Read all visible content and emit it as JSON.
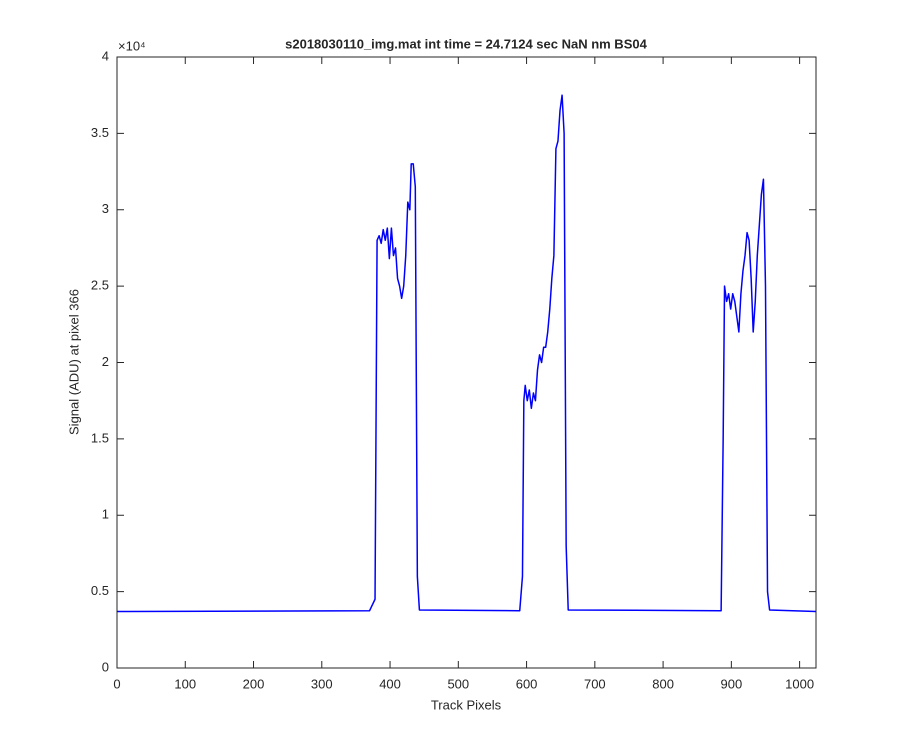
{
  "chart_data": {
    "type": "line",
    "title": "s2018030110_img.mat int time = 24.7124 sec  NaN nm BS04",
    "xlabel": "Track Pixels",
    "ylabel": "Signal (ADU) at pixel 366",
    "y_multiplier": "×10⁴",
    "xlim": [
      0,
      1024
    ],
    "ylim": [
      0,
      40000
    ],
    "xticks": [
      0,
      100,
      200,
      300,
      400,
      500,
      600,
      700,
      800,
      900,
      1000
    ],
    "yticks": [
      0,
      {
        "value": 5000,
        "label": "0.5"
      },
      {
        "value": 10000,
        "label": "1"
      },
      {
        "value": 15000,
        "label": "1.5"
      },
      {
        "value": 20000,
        "label": "2"
      },
      {
        "value": 25000,
        "label": "2.5"
      },
      {
        "value": 30000,
        "label": "3"
      },
      {
        "value": 35000,
        "label": "3.5"
      },
      {
        "value": 40000,
        "label": "4"
      }
    ],
    "grid": false,
    "x": [
      0,
      370,
      378,
      381,
      384,
      387,
      390,
      393,
      396,
      399,
      402,
      405,
      408,
      411,
      414,
      417,
      420,
      423,
      426,
      429,
      431,
      434,
      437,
      440,
      443,
      590,
      594,
      596,
      598,
      601,
      604,
      607,
      610,
      613,
      616,
      619,
      622,
      625,
      628,
      631,
      634,
      637,
      640,
      643,
      646,
      649,
      652,
      655,
      658,
      661,
      885,
      888,
      890,
      893,
      896,
      899,
      902,
      905,
      908,
      911,
      914,
      917,
      920,
      923,
      926,
      929,
      932,
      935,
      938,
      941,
      944,
      947,
      950,
      953,
      956,
      1024
    ],
    "series": [
      {
        "name": "signal",
        "color": "#0000ff",
        "values": [
          3700,
          3750,
          4500,
          28000,
          28300,
          27800,
          28700,
          28000,
          28800,
          26800,
          28800,
          27000,
          27500,
          25500,
          25000,
          24200,
          25000,
          27000,
          30500,
          30000,
          33000,
          33000,
          31500,
          6000,
          3800,
          3750,
          6000,
          17500,
          18500,
          17500,
          18200,
          17000,
          18000,
          17500,
          19500,
          20500,
          20000,
          21000,
          21000,
          22000,
          23500,
          25500,
          27000,
          34000,
          34500,
          36500,
          37500,
          35000,
          8000,
          3800,
          3750,
          15000,
          25000,
          24000,
          24500,
          23500,
          24500,
          24000,
          23000,
          22000,
          24500,
          26000,
          27000,
          28500,
          28000,
          25500,
          22000,
          24000,
          27000,
          29000,
          31000,
          32000,
          25000,
          5000,
          3800,
          3700
        ]
      }
    ]
  }
}
